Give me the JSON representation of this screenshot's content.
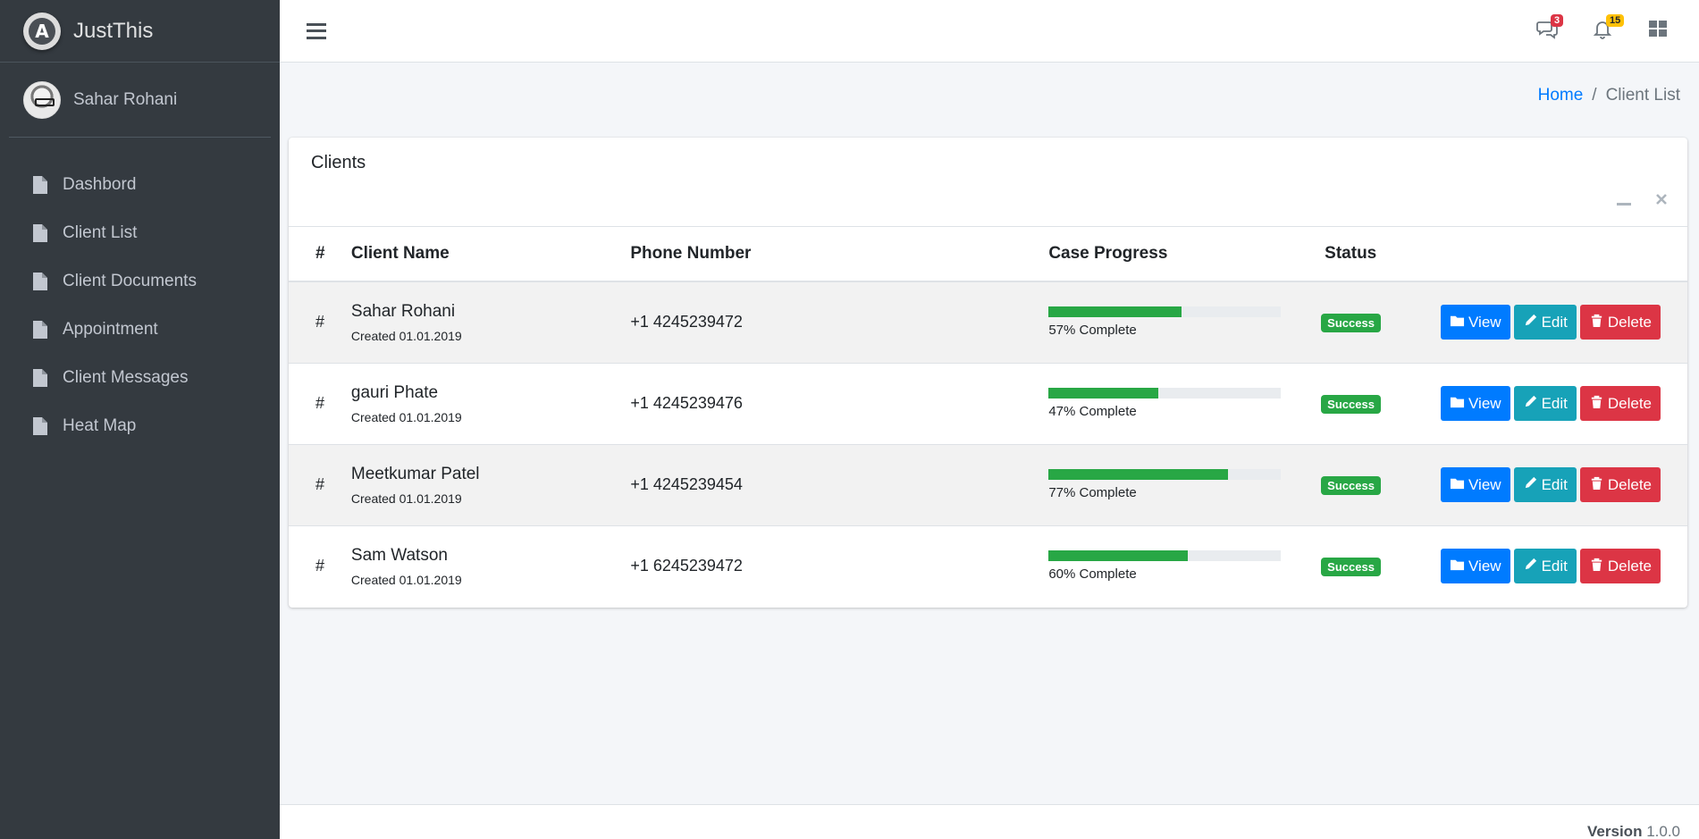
{
  "brand": {
    "name": "JustThis",
    "logo_letter": "A"
  },
  "user": {
    "name": "Sahar Rohani"
  },
  "sidebar": {
    "items": [
      {
        "label": "Dashbord",
        "icon": "file-icon"
      },
      {
        "label": "Client List",
        "icon": "file-icon"
      },
      {
        "label": "Client Documents",
        "icon": "file-icon"
      },
      {
        "label": "Appointment",
        "icon": "file-icon"
      },
      {
        "label": "Client Messages",
        "icon": "file-icon"
      },
      {
        "label": "Heat Map",
        "icon": "file-icon"
      }
    ]
  },
  "topbar": {
    "messages_count": "3",
    "notifications_count": "15"
  },
  "breadcrumb": {
    "home": "Home",
    "separator": "/",
    "current": "Client List"
  },
  "card": {
    "title": "Clients",
    "columns": {
      "hash": "#",
      "name": "Client Name",
      "phone": "Phone Number",
      "progress": "Case Progress",
      "status": "Status"
    }
  },
  "clients": [
    {
      "hash": "#",
      "name": "Sahar Rohani",
      "created": "Created 01.01.2019",
      "phone": "+1 4245239472",
      "progress": 57,
      "progress_text": "57% Complete",
      "status": "Success"
    },
    {
      "hash": "#",
      "name": "gauri Phate",
      "created": "Created 01.01.2019",
      "phone": "+1 4245239476",
      "progress": 47,
      "progress_text": "47% Complete",
      "status": "Success"
    },
    {
      "hash": "#",
      "name": "Meetkumar Patel",
      "created": "Created 01.01.2019",
      "phone": "+1 4245239454",
      "progress": 77,
      "progress_text": "77% Complete",
      "status": "Success"
    },
    {
      "hash": "#",
      "name": "Sam Watson",
      "created": "Created 01.01.2019",
      "phone": "+1 6245239472",
      "progress": 60,
      "progress_text": "60% Complete",
      "status": "Success"
    }
  ],
  "actions": {
    "view": "View",
    "edit": "Edit",
    "delete": "Delete"
  },
  "footer": {
    "version_label": "Version",
    "version_number": "1.0.0"
  },
  "colors": {
    "sidebar": "#343a40",
    "primary": "#007bff",
    "info": "#17a2b8",
    "danger": "#dc3545",
    "success": "#28a745"
  }
}
